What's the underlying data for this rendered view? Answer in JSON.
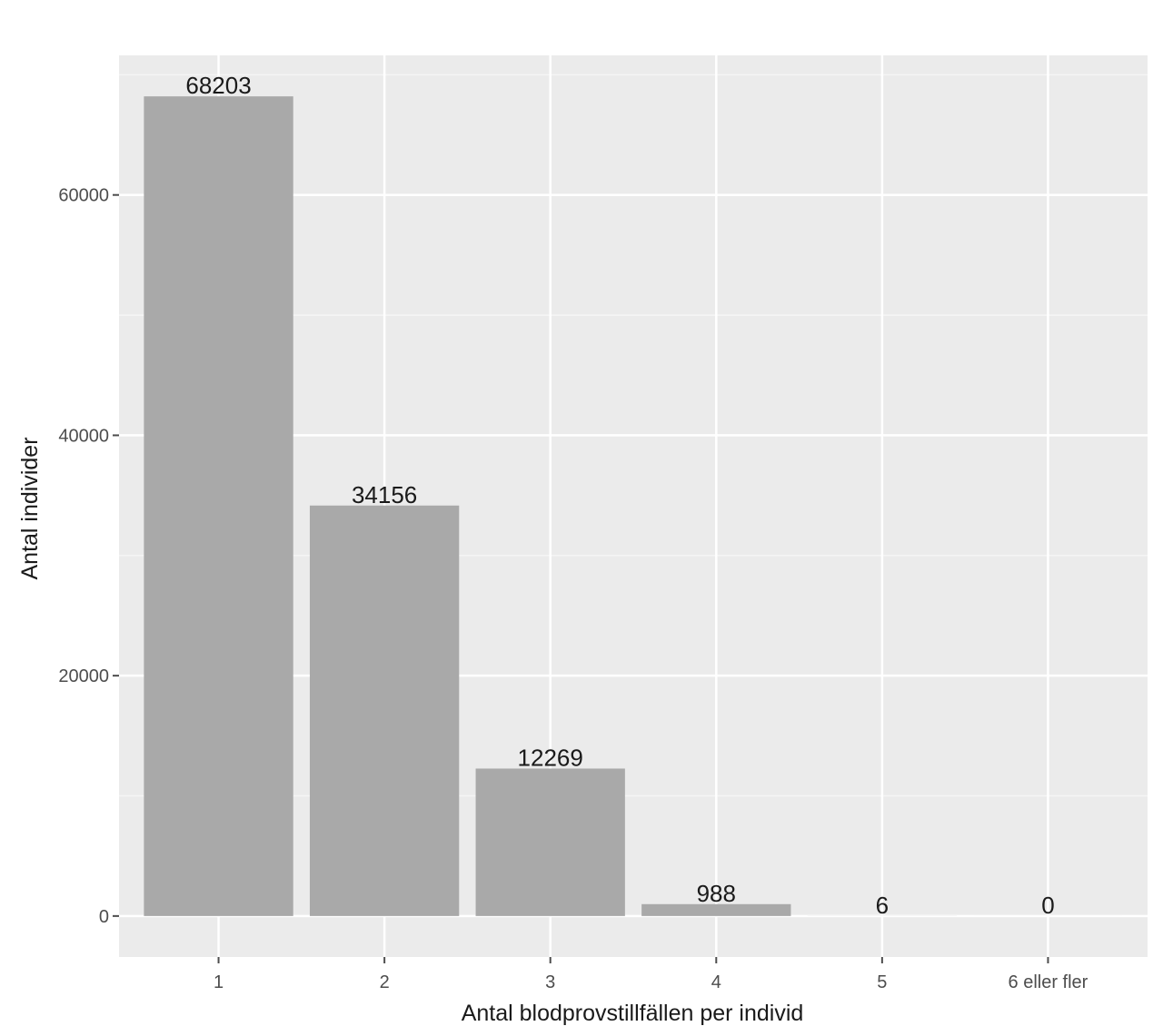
{
  "colors": {
    "panel_background": "#ebebeb",
    "grid_major": "#ffffff",
    "grid_minor": "#f5f5f5",
    "bar_fill": "#a9a9a9",
    "tick_color": "#4d4d4d"
  },
  "chart_data": {
    "type": "bar",
    "xlabel": "Antal blodprovstillfällen per individ",
    "ylabel": "Antal individer",
    "categories": [
      "1",
      "2",
      "3",
      "4",
      "5",
      "6 eller fler"
    ],
    "values": [
      68203,
      34156,
      12269,
      988,
      6,
      0
    ],
    "data_labels": [
      "68203",
      "34156",
      "12269",
      "988",
      "6",
      "0"
    ],
    "y_ticks": [
      0,
      20000,
      40000,
      60000
    ],
    "y_tick_labels": [
      "0",
      "20000",
      "40000",
      "60000"
    ],
    "ylim": [
      -3410,
      71613
    ],
    "grid": true,
    "legend": "none"
  }
}
